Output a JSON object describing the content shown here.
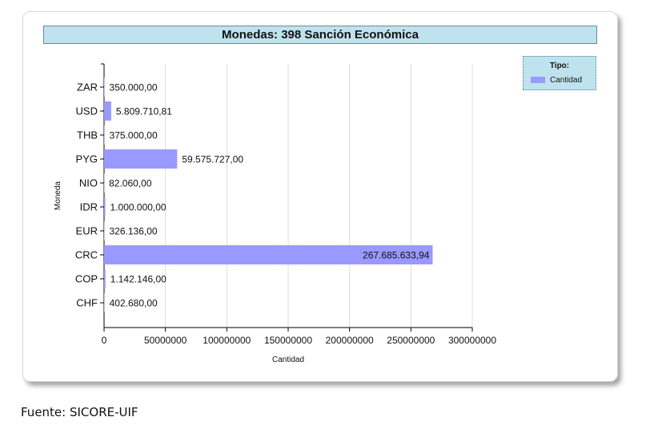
{
  "chart_data": {
    "type": "bar",
    "orientation": "horizontal",
    "title": "Monedas: 398 Sanción Económica",
    "xlabel": "Cantidad",
    "ylabel": "Moneda",
    "categories": [
      "ZAR",
      "USD",
      "THB",
      "PYG",
      "NIO",
      "IDR",
      "EUR",
      "CRC",
      "COP",
      "CHF"
    ],
    "values": [
      350000.0,
      5809710.81,
      375000.0,
      59575727.0,
      82060.0,
      1000000.0,
      326136.0,
      267685633.94,
      1142146.0,
      402680.0
    ],
    "value_labels": [
      "350.000,00",
      "5.809.710,81",
      "375.000,00",
      "59.575.727,00",
      "82.060,00",
      "1.000.000,00",
      "326.136,00",
      "267.685.633,94",
      "1.142.146,00",
      "402.680,00"
    ],
    "xlim": [
      0,
      300000000
    ],
    "xticks": [
      0,
      50000000,
      100000000,
      150000000,
      200000000,
      250000000,
      300000000
    ],
    "xtick_labels": [
      "0",
      "50000000",
      "100000000",
      "150000000",
      "200000000",
      "250000000",
      "300000000"
    ],
    "grid": "vertical",
    "bar_color": "#9999ff",
    "legend": {
      "title": "Tipo:",
      "items": [
        "Cantidad"
      ],
      "placement": "top-right"
    }
  },
  "source": "Fuente: SICORE-UIF"
}
